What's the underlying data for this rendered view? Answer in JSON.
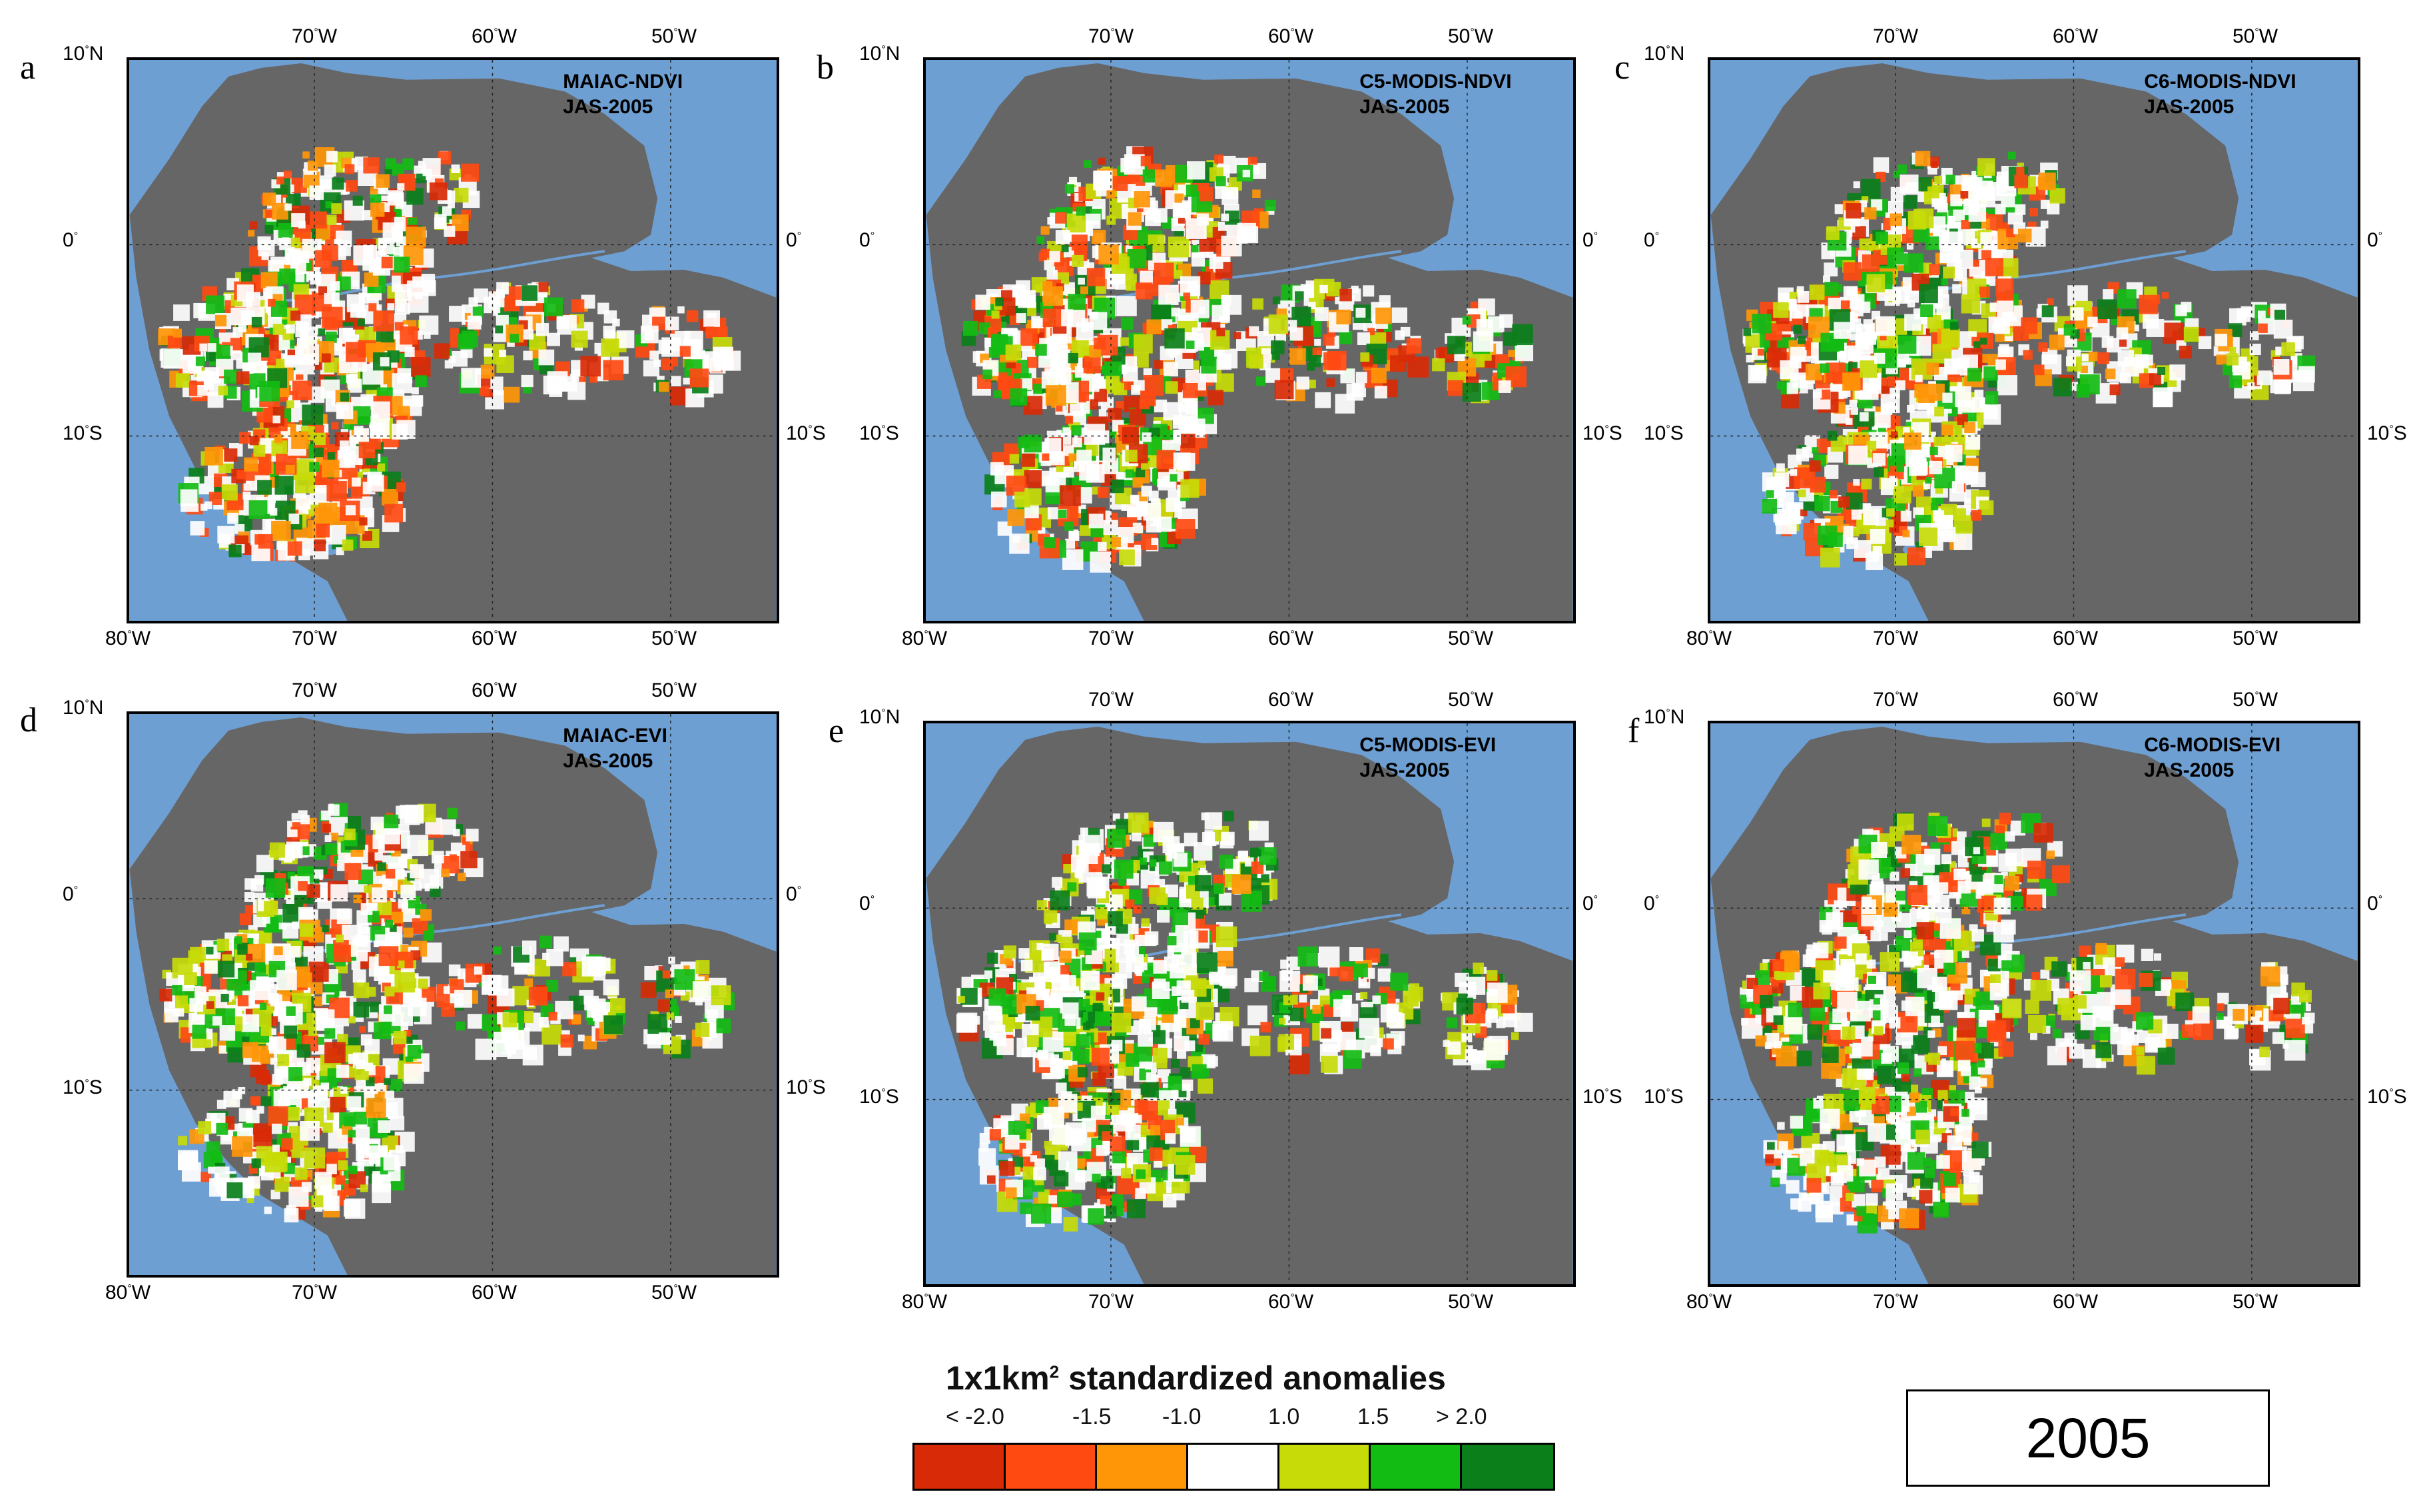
{
  "figure": {
    "year_label": "2005",
    "legend": {
      "title_main": "1x1km",
      "title_sup": "2",
      "title_rest": " standardized anomalies",
      "ticks": [
        "< -2.0",
        "-1.5",
        "-1.0",
        "1.0",
        "1.5",
        "> 2.0"
      ],
      "colors": [
        "#d92a07",
        "#ff4a12",
        "#ff9608",
        "#ffffff",
        "#c7db08",
        "#12bc13",
        "#0a7f1a"
      ]
    },
    "colors": {
      "ocean": "#6e9fd3",
      "land": "#666666",
      "gridline": "#222222"
    },
    "axes": {
      "top_lon": [
        "70",
        "60",
        "50"
      ],
      "bottom_lon": [
        "80",
        "70",
        "60",
        "50"
      ],
      "lat_left": [
        "10",
        "0",
        "10"
      ],
      "lat_left_hemi": [
        "N",
        "",
        "S"
      ],
      "lat_right": [
        "0",
        "10"
      ],
      "lat_right_hemi": [
        "",
        "S"
      ],
      "deg": "°",
      "west": "W"
    },
    "panels": [
      {
        "letter": "a",
        "product": "MAIAC-NDVI",
        "period": "JAS-2005"
      },
      {
        "letter": "b",
        "product": "C5-MODIS-NDVI",
        "period": "JAS-2005"
      },
      {
        "letter": "c",
        "product": "C6-MODIS-NDVI",
        "period": "JAS-2005"
      },
      {
        "letter": "d",
        "product": "MAIAC-EVI",
        "period": "JAS-2005"
      },
      {
        "letter": "e",
        "product": "C5-MODIS-EVI",
        "period": "JAS-2005"
      },
      {
        "letter": "f",
        "product": "C6-MODIS-EVI",
        "period": "JAS-2005"
      }
    ]
  }
}
